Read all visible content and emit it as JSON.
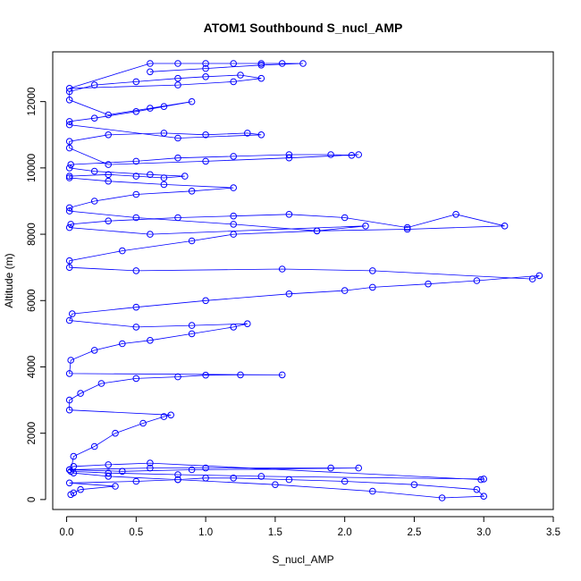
{
  "chart_data": {
    "type": "scatter",
    "title": "ATOM1 Southbound S_nucl_AMP",
    "xlabel": "S_nucl_AMP",
    "ylabel": "Altitude (m)",
    "xlim": [
      -0.1,
      3.5
    ],
    "ylim": [
      -300,
      13500
    ],
    "x_ticks": [
      0.0,
      0.5,
      1.0,
      1.5,
      2.0,
      2.5,
      3.0,
      3.5
    ],
    "y_ticks": [
      0,
      2000,
      4000,
      6000,
      8000,
      10000,
      12000
    ],
    "grid": false,
    "legend": "none",
    "marker": "open-circle",
    "connect_points": true,
    "colors": {
      "series": "#0000ff",
      "axes": "#000000"
    },
    "series": [
      {
        "x": [
          0.03,
          0.05,
          0.1,
          0.35,
          0.02,
          0.5,
          0.8,
          1.0,
          1.2,
          1.6,
          2.0,
          2.5,
          2.95,
          3.0,
          2.7,
          2.2,
          1.5,
          0.8,
          0.3,
          0.05,
          0.02,
          0.6,
          1.0,
          1.9,
          2.1,
          0.9,
          0.4,
          0.02,
          0.05,
          0.3,
          0.6,
          2.98,
          3.0,
          1.4,
          0.8,
          0.3,
          0.03,
          0.05,
          0.2,
          0.35,
          0.55,
          0.7,
          0.75,
          0.02,
          0.02,
          0.1,
          0.25,
          0.5,
          0.8,
          1.0,
          1.25,
          1.55,
          0.02,
          0.03,
          0.2,
          0.4,
          0.6,
          0.9,
          1.2,
          1.3,
          0.9,
          0.5,
          0.02,
          0.04,
          0.5,
          1.0,
          1.6,
          2.0,
          2.2,
          2.6,
          2.95,
          3.4,
          3.35,
          2.2,
          1.55,
          0.5,
          0.02,
          0.02,
          0.4,
          0.9,
          1.2,
          1.8,
          2.15,
          0.6,
          0.02,
          0.03,
          0.3,
          0.8,
          1.2,
          1.6,
          2.0,
          2.45,
          2.8,
          3.15,
          2.45,
          1.8,
          1.2,
          0.5,
          0.02,
          0.02,
          0.2,
          0.5,
          0.9,
          1.2,
          0.7,
          0.3,
          0.02,
          0.02,
          0.3,
          0.5,
          0.7,
          0.85,
          0.6,
          0.2,
          0.02,
          0.03,
          0.5,
          0.8,
          1.2,
          1.6,
          1.9,
          2.05,
          2.1,
          1.6,
          1.0,
          0.3,
          0.02,
          0.02,
          0.3,
          0.7,
          1.0,
          1.3,
          1.4,
          0.8,
          0.02,
          0.02,
          0.2,
          0.5,
          0.7,
          0.9,
          0.6,
          0.3,
          0.02,
          0.02,
          0.2,
          0.5,
          0.8,
          1.0,
          1.25,
          1.4,
          1.2,
          0.8,
          0.02,
          0.6,
          0.8,
          1.0,
          1.2,
          1.4,
          1.55,
          1.7,
          1.4,
          1.0,
          0.6
        ],
        "y": [
          150,
          200,
          300,
          400,
          500,
          550,
          600,
          650,
          650,
          600,
          550,
          450,
          300,
          100,
          50,
          250,
          450,
          600,
          700,
          800,
          900,
          950,
          950,
          950,
          950,
          900,
          850,
          900,
          1000,
          1050,
          1100,
          600,
          620,
          700,
          750,
          800,
          850,
          1300,
          1600,
          2000,
          2300,
          2500,
          2550,
          2700,
          3000,
          3200,
          3500,
          3650,
          3700,
          3750,
          3760,
          3760,
          3800,
          4200,
          4500,
          4700,
          4800,
          5000,
          5200,
          5300,
          5250,
          5200,
          5400,
          5600,
          5800,
          6000,
          6200,
          6300,
          6400,
          6500,
          6600,
          6750,
          6650,
          6900,
          6950,
          6900,
          7000,
          7200,
          7500,
          7800,
          8000,
          8100,
          8250,
          8000,
          8200,
          8300,
          8400,
          8500,
          8550,
          8600,
          8500,
          8200,
          8600,
          8250,
          8150,
          8100,
          8300,
          8500,
          8700,
          8800,
          9000,
          9200,
          9300,
          9400,
          9500,
          9600,
          9700,
          9750,
          9800,
          9750,
          9700,
          9750,
          9800,
          9900,
          10000,
          10100,
          10200,
          10300,
          10350,
          10400,
          10400,
          10380,
          10400,
          10300,
          10200,
          10100,
          10600,
          10800,
          11000,
          11050,
          11000,
          11050,
          11000,
          10900,
          11300,
          11400,
          11500,
          11700,
          11850,
          12000,
          11800,
          11600,
          12050,
          12300,
          12500,
          12600,
          12700,
          12750,
          12800,
          12700,
          12600,
          12500,
          12400,
          13150,
          13150,
          13150,
          13150,
          13150,
          13150,
          13150,
          13100,
          13000,
          12900
        ]
      }
    ]
  }
}
